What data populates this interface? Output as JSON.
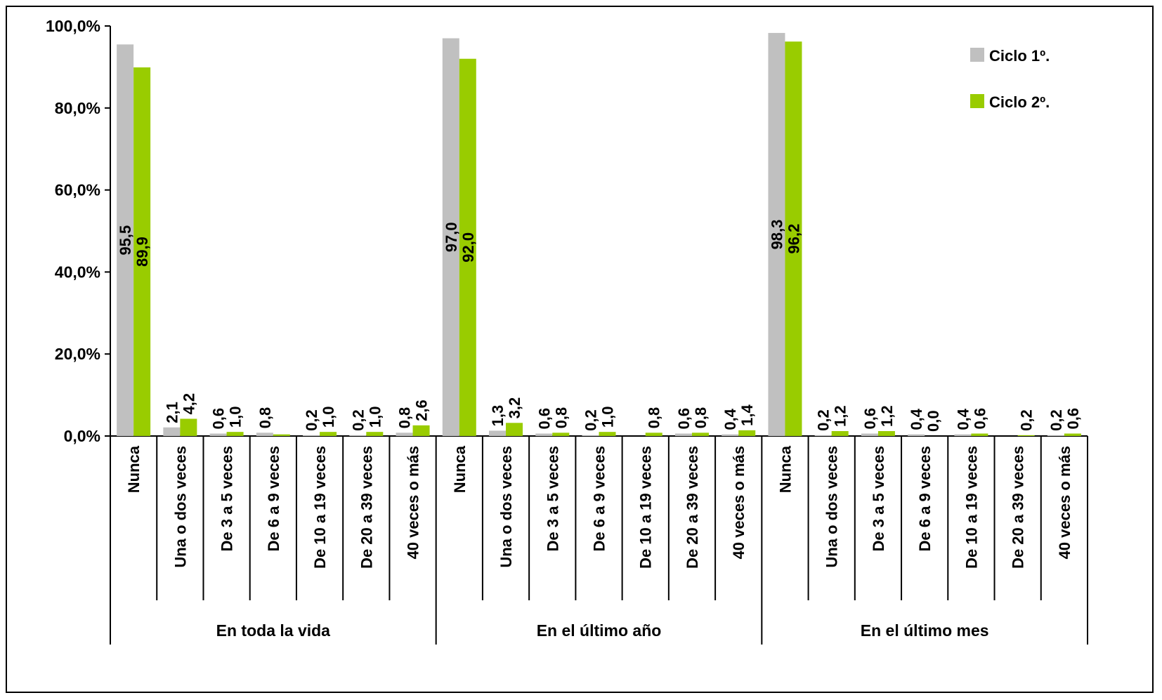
{
  "chart_data": {
    "type": "bar",
    "title": "",
    "xlabel": "",
    "ylabel": "",
    "ylim": [
      0,
      100
    ],
    "yticks": [
      "0,0%",
      "20,0%",
      "40,0%",
      "60,0%",
      "80,0%",
      "100,0%"
    ],
    "groups": [
      {
        "label": "En toda la vida",
        "categories": [
          "Nunca",
          "Una o dos veces",
          "De 3 a 5 veces",
          "De 6 a 9 veces",
          "De 10 a 19 veces",
          "De 20 a 39 veces",
          "40 veces o más"
        ]
      },
      {
        "label": "En el último año",
        "categories": [
          "Nunca",
          "Una o dos veces",
          "De 3 a 5 veces",
          "De 6 a 9 veces",
          "De 10 a 19 veces",
          "De 20 a 39 veces",
          "40 veces o más"
        ]
      },
      {
        "label": "En el último mes",
        "categories": [
          "Nunca",
          "Una o dos veces",
          "De 3 a 5 veces",
          "De 6 a 9 veces",
          "De 10 a 19 veces",
          "De 20 a 39 veces",
          "40 veces o más"
        ]
      }
    ],
    "series": [
      {
        "name": "Ciclo 1º.",
        "color": "#c0c0c0",
        "values": [
          95.5,
          2.1,
          0.6,
          0.8,
          0.2,
          0.2,
          0.8,
          97.0,
          1.3,
          0.6,
          0.2,
          null,
          0.6,
          0.4,
          98.3,
          0.2,
          0.6,
          0.4,
          0.4,
          null,
          0.2
        ],
        "labels": [
          "95,5",
          "2,1",
          "0,6",
          "0,8",
          "0,2",
          "0,2",
          "0,8",
          "97,0",
          "1,3",
          "0,6",
          "0,2",
          "",
          "0,6",
          "0,4",
          "98,3",
          "0,2",
          "0,6",
          "0,4",
          "0,4",
          "",
          "0,2"
        ]
      },
      {
        "name": "Ciclo 2º.",
        "color": "#99cc00",
        "values": [
          89.9,
          4.2,
          1.0,
          0.4,
          1.0,
          1.0,
          2.6,
          92.0,
          3.2,
          0.8,
          1.0,
          0.8,
          0.8,
          1.4,
          96.2,
          1.2,
          1.2,
          0.0,
          0.6,
          0.2,
          0.6
        ],
        "labels": [
          "89,9",
          "4,2",
          "1,0",
          "",
          "1,0",
          "1,0",
          "2,6",
          "92,0",
          "3,2",
          "0,8",
          "1,0",
          "0,8",
          "0,8",
          "1,4",
          "96,2",
          "1,2",
          "1,2",
          "0,0",
          "0,6",
          "0,2",
          "0,6"
        ]
      }
    ],
    "legend": {
      "position": "top-right"
    }
  }
}
